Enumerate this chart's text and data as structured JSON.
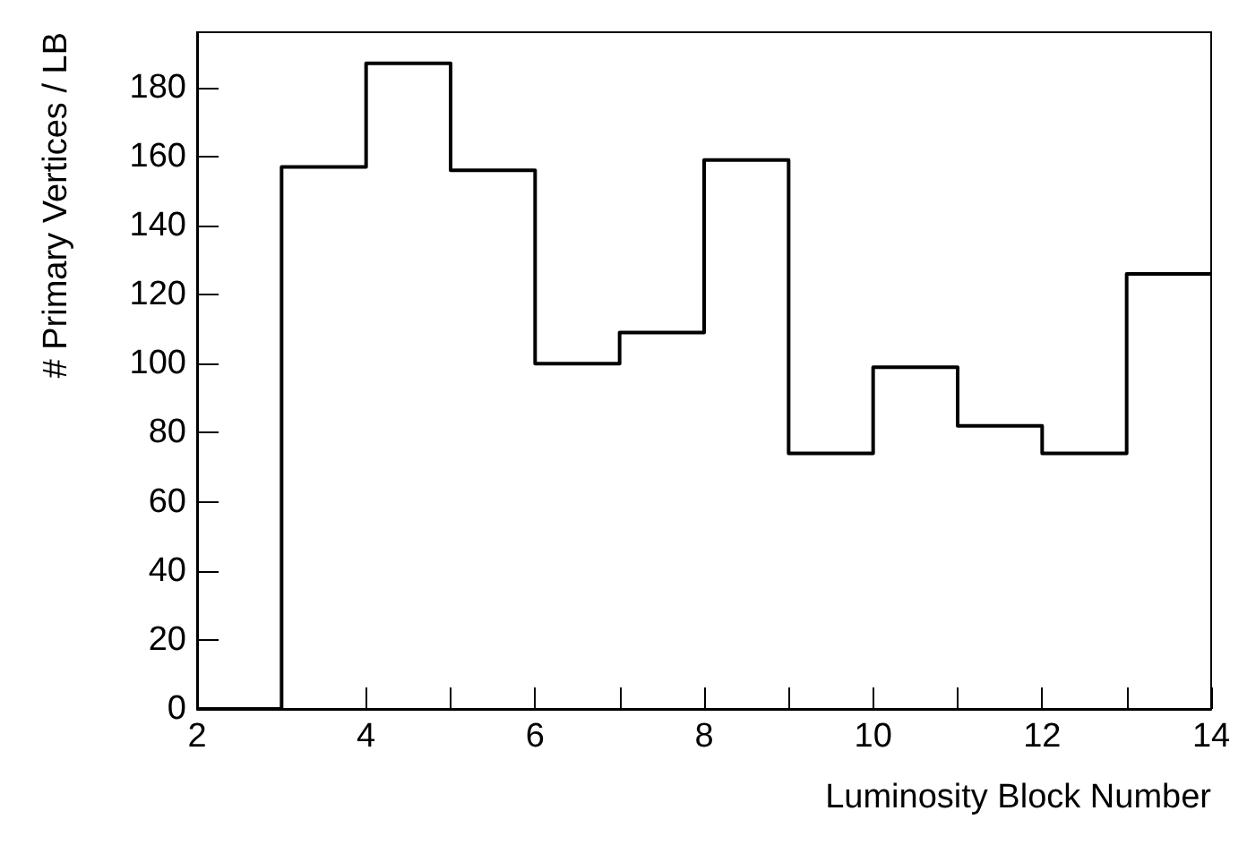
{
  "chart_data": {
    "type": "histogram",
    "xlabel": "Luminosity Block Number",
    "ylabel": "# Primary Vertices / LB",
    "bins": [
      2,
      3,
      4,
      5,
      6,
      7,
      8,
      9,
      10,
      11,
      12,
      13,
      14
    ],
    "values": [
      0,
      157,
      187,
      156,
      100,
      109,
      159,
      74,
      99,
      82,
      74,
      126
    ],
    "color": "#000000",
    "xlim": [
      2,
      14
    ],
    "xticks": [
      2,
      {
        "value": 3,
        "label": null
      },
      4,
      {
        "value": 5,
        "label": null
      },
      6,
      {
        "value": 7,
        "label": null
      },
      8,
      {
        "value": 9,
        "label": null
      },
      10,
      {
        "value": 11,
        "label": null
      },
      12,
      {
        "value": 13,
        "label": null
      },
      14
    ],
    "ylim": [
      0,
      196
    ],
    "yticks": [
      0,
      20,
      40,
      60,
      80,
      100,
      120,
      140,
      160,
      180
    ],
    "grid": false
  }
}
